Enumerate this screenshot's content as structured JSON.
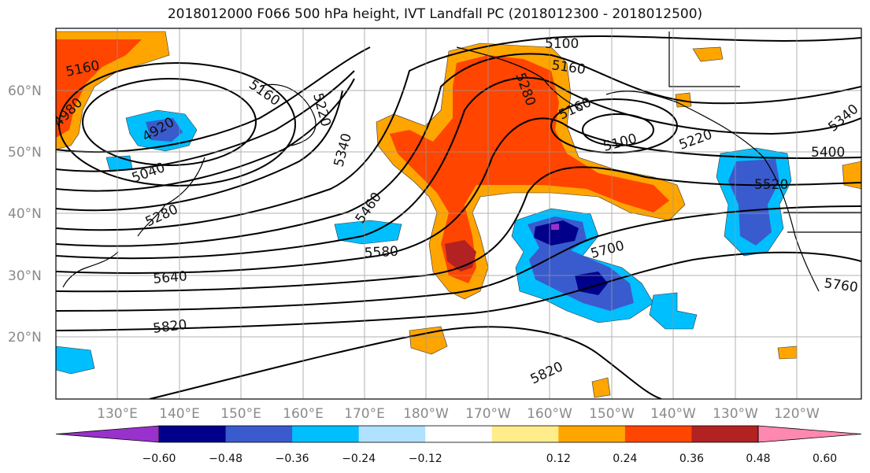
{
  "title": "2018012000 F066 500 hPa height, IVT Landfall PC (2018012300 - 2018012500)",
  "map": {
    "lon_labels": [
      "130°E",
      "140°E",
      "150°E",
      "160°E",
      "170°E",
      "180°W",
      "170°W",
      "160°W",
      "150°W",
      "140°W",
      "130°W",
      "120°W"
    ],
    "lat_labels": [
      "60°N",
      "50°N",
      "40°N",
      "30°N",
      "20°N"
    ],
    "height_contour_labels": [
      "5160",
      "4980",
      "4920",
      "5040",
      "5280",
      "5160",
      "5220",
      "5340",
      "5460",
      "5580",
      "5640",
      "5820",
      "5820",
      "5100",
      "5160",
      "5280",
      "5160",
      "5100",
      "5220",
      "5340",
      "5400",
      "5520",
      "5700",
      "5760"
    ]
  },
  "colorbar": {
    "ticks": [
      "−0.60",
      "−0.48",
      "−0.36",
      "−0.24",
      "−0.12",
      "0.12",
      "0.24",
      "0.36",
      "0.48",
      "0.60"
    ],
    "colors": [
      "#9932CC",
      "#00008B",
      "#3A5BCD",
      "#00BFFF",
      "#B0E2FF",
      "#FFFFFF",
      "#FFEC8B",
      "#FFA500",
      "#FF4500",
      "#B22222",
      "#FF88B0"
    ]
  },
  "colors": {
    "neg_strong": "#3A5BCD",
    "neg_mid": "#00BFFF",
    "neg_light": "#B0E2FF",
    "neg_darkest": "#00008B",
    "pos_light": "#FFEC8B",
    "pos_mid": "#FFA500",
    "pos_strong": "#FF4500",
    "pos_darkest": "#B22222"
  }
}
